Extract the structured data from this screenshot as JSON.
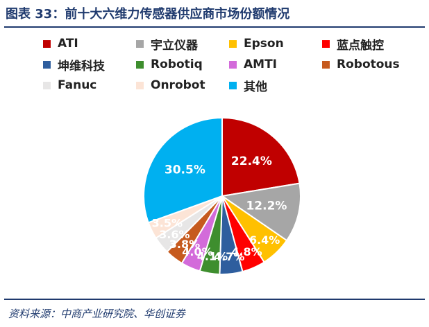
{
  "title": "图表 33：前十大六维力传感器供应商市场份额情况",
  "source": "资料来源：中商产业研究院、华创证券",
  "chart_data": {
    "type": "pie",
    "title": "",
    "slices": [
      {
        "name": "ATI",
        "value": 22.4,
        "label": "22.4%",
        "color": "#C00000"
      },
      {
        "name": "宇立仪器",
        "value": 12.2,
        "label": "12.2%",
        "color": "#A6A6A6"
      },
      {
        "name": "Epson",
        "value": 6.4,
        "label": "6.4%",
        "color": "#FFC000"
      },
      {
        "name": "蓝点触控",
        "value": 4.8,
        "label": "4.8%",
        "color": "#FF0000"
      },
      {
        "name": "坤维科技",
        "value": 4.7,
        "label": "4.7%",
        "color": "#2E5E9E"
      },
      {
        "name": "Robotiq",
        "value": 4.1,
        "label": "4.1%",
        "color": "#3E8E2E"
      },
      {
        "name": "AMTI",
        "value": 4.0,
        "label": "4.0%",
        "color": "#D36BDA"
      },
      {
        "name": "Robotous",
        "value": 3.8,
        "label": "3.8%",
        "color": "#C65A1E"
      },
      {
        "name": "Fanuc",
        "value": 3.6,
        "label": "3.6%",
        "color": "#E7E6E6"
      },
      {
        "name": "Onrobot",
        "value": 3.5,
        "label": "3.5%",
        "color": "#FCE4D6"
      },
      {
        "name": "其他",
        "value": 30.5,
        "label": "30.5%",
        "color": "#00B0F0"
      }
    ],
    "legend_position": "top",
    "start": "top",
    "direction": "clockwise"
  }
}
